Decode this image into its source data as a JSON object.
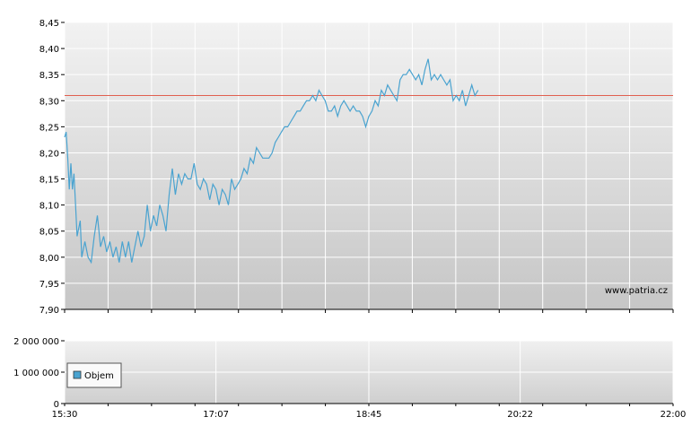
{
  "chart_data": [
    {
      "type": "line",
      "title": "",
      "xlabel": "",
      "ylabel": "",
      "ylim": [
        7.9,
        8.45
      ],
      "yticks": [
        "8,45",
        "8,40",
        "8,35",
        "8,30",
        "8,25",
        "8,20",
        "8,15",
        "8,10",
        "8,05",
        "8,00",
        "7,95",
        "7,90"
      ],
      "xlim": [
        "15:30",
        "22:00"
      ],
      "grid": true,
      "watermark": "www.patria.cz",
      "reference_line": {
        "value": 8.31,
        "color": "#e06050"
      },
      "series": [
        {
          "color": "#4aa3d0",
          "points": [
            [
              "15:30",
              8.23
            ],
            [
              "15:31",
              8.24
            ],
            [
              "15:32",
              8.19
            ],
            [
              "15:33",
              8.13
            ],
            [
              "15:34",
              8.18
            ],
            [
              "15:35",
              8.13
            ],
            [
              "15:36",
              8.16
            ],
            [
              "15:37",
              8.1
            ],
            [
              "15:38",
              8.04
            ],
            [
              "15:40",
              8.07
            ],
            [
              "15:41",
              8.0
            ],
            [
              "15:43",
              8.03
            ],
            [
              "15:45",
              8.0
            ],
            [
              "15:47",
              7.99
            ],
            [
              "15:49",
              8.04
            ],
            [
              "15:51",
              8.08
            ],
            [
              "15:53",
              8.02
            ],
            [
              "15:55",
              8.04
            ],
            [
              "15:57",
              8.01
            ],
            [
              "15:59",
              8.03
            ],
            [
              "16:01",
              8.0
            ],
            [
              "16:03",
              8.02
            ],
            [
              "16:05",
              7.99
            ],
            [
              "16:07",
              8.03
            ],
            [
              "16:09",
              8.0
            ],
            [
              "16:11",
              8.03
            ],
            [
              "16:13",
              7.99
            ],
            [
              "16:15",
              8.02
            ],
            [
              "16:17",
              8.05
            ],
            [
              "16:19",
              8.02
            ],
            [
              "16:21",
              8.04
            ],
            [
              "16:23",
              8.1
            ],
            [
              "16:25",
              8.05
            ],
            [
              "16:27",
              8.08
            ],
            [
              "16:29",
              8.06
            ],
            [
              "16:31",
              8.1
            ],
            [
              "16:33",
              8.08
            ],
            [
              "16:35",
              8.05
            ],
            [
              "16:37",
              8.12
            ],
            [
              "16:39",
              8.17
            ],
            [
              "16:41",
              8.12
            ],
            [
              "16:43",
              8.16
            ],
            [
              "16:45",
              8.14
            ],
            [
              "16:47",
              8.16
            ],
            [
              "16:49",
              8.15
            ],
            [
              "16:51",
              8.15
            ],
            [
              "16:53",
              8.18
            ],
            [
              "16:55",
              8.14
            ],
            [
              "16:57",
              8.13
            ],
            [
              "16:59",
              8.15
            ],
            [
              "17:01",
              8.14
            ],
            [
              "17:03",
              8.11
            ],
            [
              "17:05",
              8.14
            ],
            [
              "17:07",
              8.13
            ],
            [
              "17:09",
              8.1
            ],
            [
              "17:11",
              8.13
            ],
            [
              "17:13",
              8.12
            ],
            [
              "17:15",
              8.1
            ],
            [
              "17:17",
              8.15
            ],
            [
              "17:19",
              8.13
            ],
            [
              "17:21",
              8.14
            ],
            [
              "17:23",
              8.15
            ],
            [
              "17:25",
              8.17
            ],
            [
              "17:27",
              8.16
            ],
            [
              "17:29",
              8.19
            ],
            [
              "17:31",
              8.18
            ],
            [
              "17:33",
              8.21
            ],
            [
              "17:35",
              8.2
            ],
            [
              "17:37",
              8.19
            ],
            [
              "17:41",
              8.19
            ],
            [
              "17:43",
              8.2
            ],
            [
              "17:45",
              8.22
            ],
            [
              "17:47",
              8.23
            ],
            [
              "17:49",
              8.24
            ],
            [
              "17:51",
              8.25
            ],
            [
              "17:53",
              8.25
            ],
            [
              "17:55",
              8.26
            ],
            [
              "17:57",
              8.27
            ],
            [
              "17:59",
              8.28
            ],
            [
              "18:01",
              8.28
            ],
            [
              "18:03",
              8.29
            ],
            [
              "18:05",
              8.3
            ],
            [
              "18:07",
              8.3
            ],
            [
              "18:09",
              8.31
            ],
            [
              "18:11",
              8.3
            ],
            [
              "18:13",
              8.32
            ],
            [
              "18:15",
              8.31
            ],
            [
              "18:17",
              8.3
            ],
            [
              "18:19",
              8.28
            ],
            [
              "18:21",
              8.28
            ],
            [
              "18:23",
              8.29
            ],
            [
              "18:25",
              8.27
            ],
            [
              "18:27",
              8.29
            ],
            [
              "18:29",
              8.3
            ],
            [
              "18:31",
              8.29
            ],
            [
              "18:33",
              8.28
            ],
            [
              "18:35",
              8.29
            ],
            [
              "18:37",
              8.28
            ],
            [
              "18:39",
              8.28
            ],
            [
              "18:41",
              8.27
            ],
            [
              "18:43",
              8.25
            ],
            [
              "18:45",
              8.27
            ],
            [
              "18:47",
              8.28
            ],
            [
              "18:49",
              8.3
            ],
            [
              "18:51",
              8.29
            ],
            [
              "18:53",
              8.32
            ],
            [
              "18:55",
              8.31
            ],
            [
              "18:57",
              8.33
            ],
            [
              "18:59",
              8.32
            ],
            [
              "19:01",
              8.31
            ],
            [
              "19:03",
              8.3
            ],
            [
              "19:05",
              8.34
            ],
            [
              "19:07",
              8.35
            ],
            [
              "19:09",
              8.35
            ],
            [
              "19:11",
              8.36
            ],
            [
              "19:13",
              8.35
            ],
            [
              "19:15",
              8.34
            ],
            [
              "19:17",
              8.35
            ],
            [
              "19:19",
              8.33
            ],
            [
              "19:21",
              8.36
            ],
            [
              "19:23",
              8.38
            ],
            [
              "19:25",
              8.34
            ],
            [
              "19:27",
              8.35
            ],
            [
              "19:29",
              8.34
            ],
            [
              "19:31",
              8.35
            ],
            [
              "19:33",
              8.34
            ],
            [
              "19:35",
              8.33
            ],
            [
              "19:37",
              8.34
            ],
            [
              "19:39",
              8.3
            ],
            [
              "19:41",
              8.31
            ],
            [
              "19:43",
              8.3
            ],
            [
              "19:45",
              8.32
            ],
            [
              "19:47",
              8.29
            ],
            [
              "19:49",
              8.31
            ],
            [
              "19:51",
              8.33
            ],
            [
              "19:53",
              8.31
            ],
            [
              "19:55",
              8.32
            ]
          ]
        }
      ]
    },
    {
      "type": "bar",
      "title": "",
      "xlabel": "",
      "ylabel": "",
      "ylim": [
        0,
        2000000
      ],
      "yticks": [
        "2 000 000",
        "1 000 000",
        "0"
      ],
      "xticks": [
        "15:30",
        "17:07",
        "18:45",
        "20:22",
        "22:00"
      ],
      "grid": true,
      "legend": {
        "placement": "left",
        "entries": [
          "Objem"
        ],
        "color": "#4aa3d0"
      },
      "series": [
        {
          "name": "Objem",
          "x": [
            "15:30",
            "15:40",
            "16:00",
            "16:20",
            "16:40",
            "17:00",
            "17:20",
            "17:40",
            "18:00",
            "18:20",
            "18:40",
            "19:00",
            "19:20",
            "19:40",
            "20:00",
            "20:20",
            "20:40",
            "21:00",
            "21:20",
            "21:40"
          ],
          "values": [
            4000,
            3000,
            2500,
            2000,
            2500,
            3000,
            6000,
            2000,
            2500,
            3000,
            2000,
            2500,
            3000,
            2000,
            2500,
            2000,
            3000,
            2500,
            2000,
            2500
          ]
        }
      ]
    }
  ]
}
